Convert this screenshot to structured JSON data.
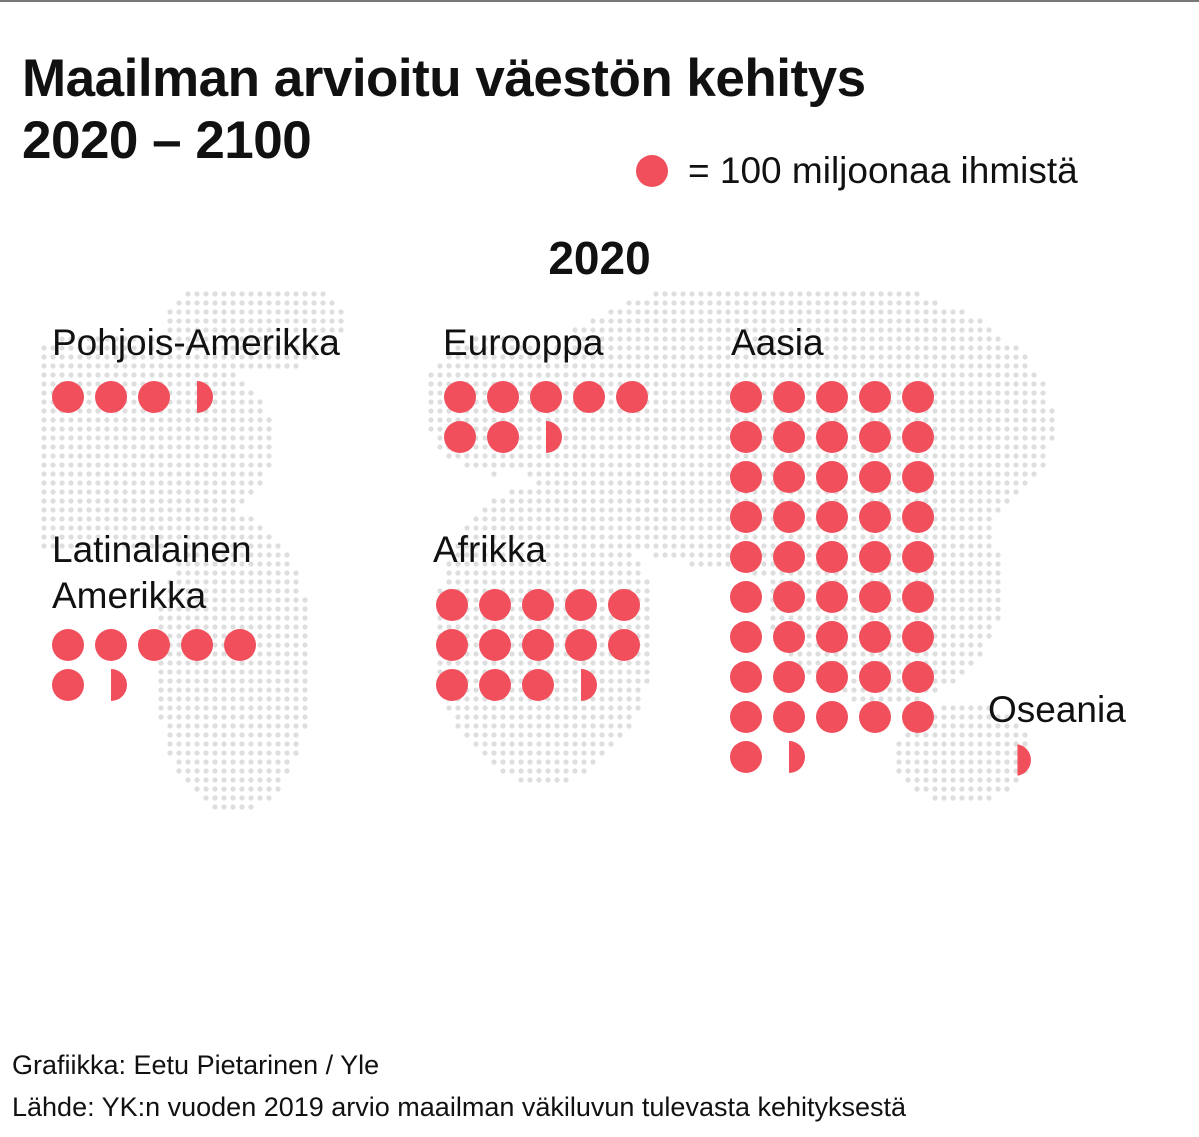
{
  "title_line1": "Maailman arvioitu väestön kehitys",
  "title_line2": "2020 – 2100",
  "legend": {
    "text": "= 100 miljoonaa ihmistä"
  },
  "year": "2020",
  "colors": {
    "dot": "#f24f5c",
    "map_dot": "#dedede"
  },
  "chart_data": {
    "type": "pictogram",
    "unit": "= 100 miljoonaa ihmistä",
    "series": [
      {
        "name": "Pohjois-Amerikka",
        "label_lines": [
          "Pohjois-Amerikka"
        ],
        "value": 3.6,
        "per_row": 5
      },
      {
        "name": "Eurooppa",
        "label_lines": [
          "Eurooppa"
        ],
        "value": 7.5,
        "per_row": 5
      },
      {
        "name": "Aasia",
        "label_lines": [
          "Aasia"
        ],
        "value": 46.5,
        "per_row": 5
      },
      {
        "name": "Latinalainen Amerikka",
        "label_lines": [
          "Latinalainen",
          "Amerikka"
        ],
        "value": 6.6,
        "per_row": 5
      },
      {
        "name": "Afrikka",
        "label_lines": [
          "Afrikka"
        ],
        "value": 13.5,
        "per_row": 5
      },
      {
        "name": "Oseania",
        "label_lines": [
          "Oseania"
        ],
        "value": 0.4,
        "per_row": 5
      }
    ]
  },
  "footer": {
    "credit": "Grafiikka: Eetu Pietarinen / Yle",
    "source": "Lähde: YK:n vuoden 2019 arvio maailman väkiluvun tulevasta kehityksestä"
  }
}
